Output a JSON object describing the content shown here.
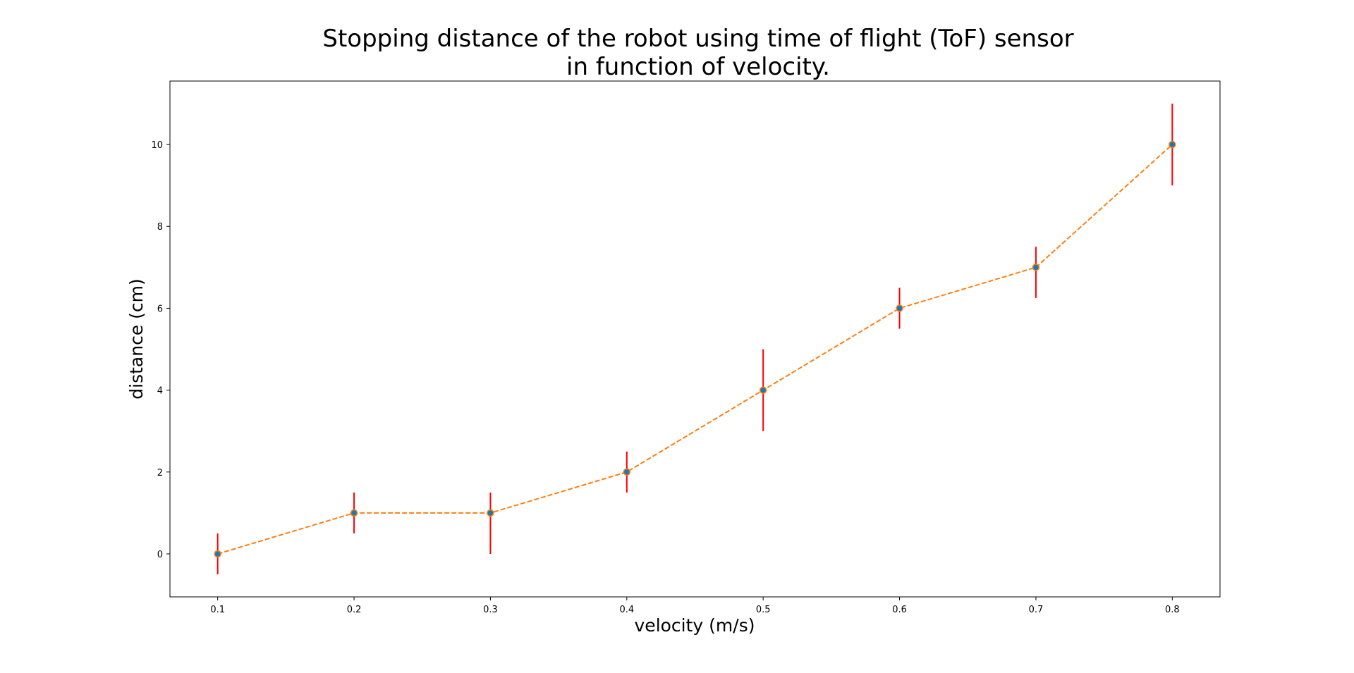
{
  "chart_data": {
    "type": "line",
    "title": [
      "Stopping distance of the robot using time of flight (ToF) sensor",
      "in function of velocity."
    ],
    "xlabel": "velocity (m/s)",
    "ylabel": "distance (cm)",
    "x": [
      0.1,
      0.2,
      0.3,
      0.4,
      0.5,
      0.6,
      0.7,
      0.8
    ],
    "series": [
      {
        "values": [
          0,
          1,
          1,
          2,
          4,
          6,
          7,
          10
        ],
        "error_low": [
          0.5,
          0.5,
          1.0,
          0.5,
          1.0,
          0.5,
          0.75,
          1.0
        ],
        "error_high": [
          0.5,
          0.5,
          0.5,
          0.5,
          1.0,
          0.5,
          0.5,
          1.0
        ],
        "line_style": "dashed",
        "line_color": "#ff7f0e",
        "marker_color": "#1f77b4",
        "errorbar_color": "#ff0000"
      }
    ],
    "xticks": [
      "0.1",
      "0.2",
      "0.3",
      "0.4",
      "0.5",
      "0.6",
      "0.7",
      "0.8"
    ],
    "yticks": [
      "0",
      "2",
      "4",
      "6",
      "8",
      "10"
    ],
    "xlim": [
      0.065,
      0.835
    ],
    "ylim": [
      -1.05,
      11.55
    ],
    "grid": false,
    "legend": false
  }
}
